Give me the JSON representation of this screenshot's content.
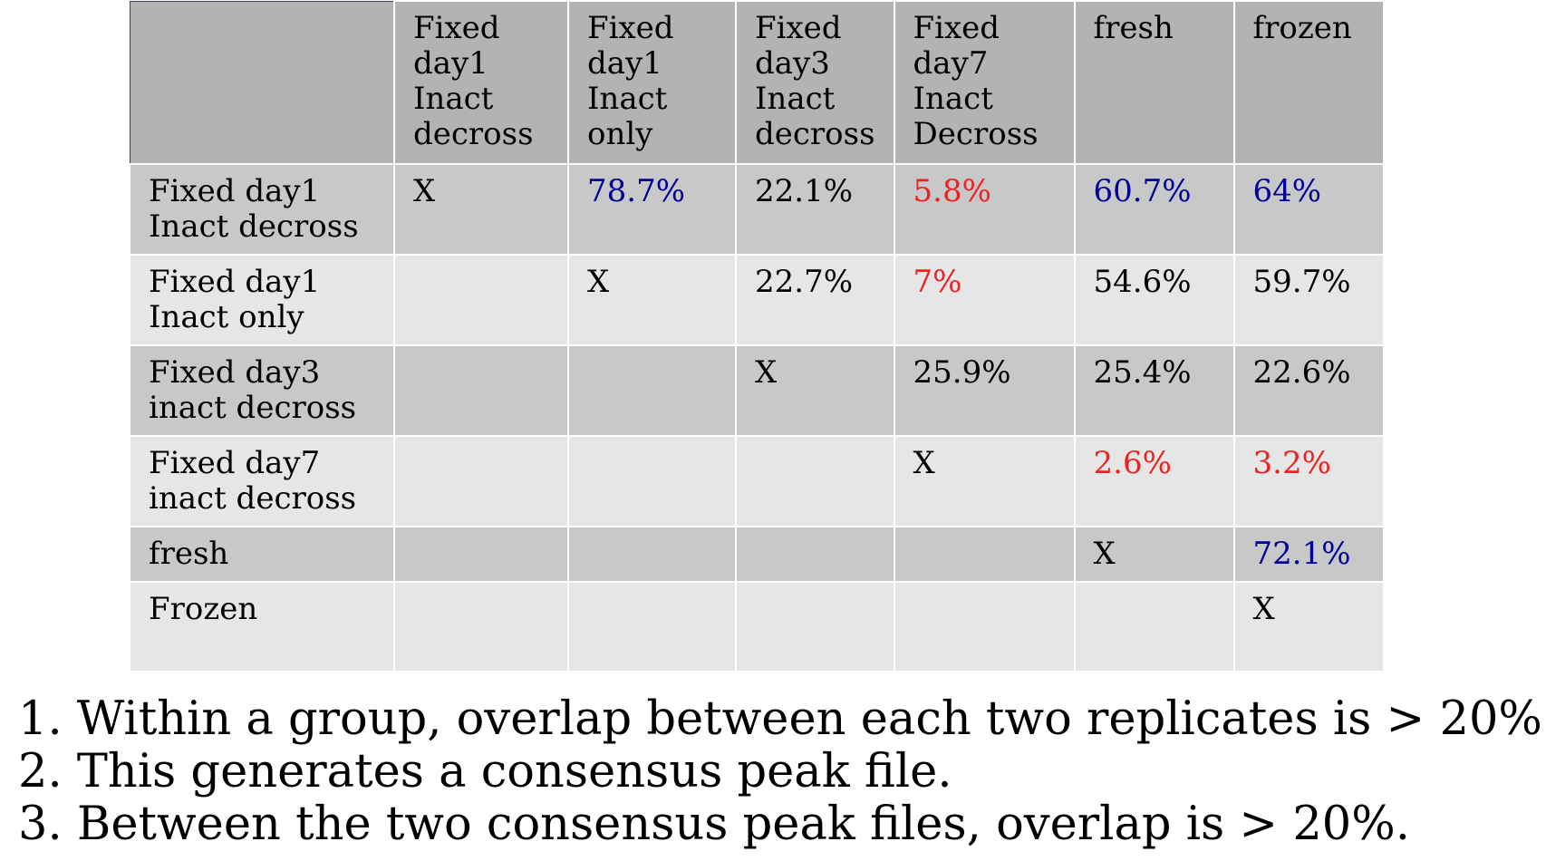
{
  "table": {
    "column_headers": [
      "",
      "Fixed\nday1\nInact\ndecross",
      "Fixed\nday1\nInact\nonly",
      "Fixed\nday3\nInact\ndecross",
      "Fixed\nday7\nInact\nDecross",
      "fresh",
      "frozen"
    ],
    "rows": [
      {
        "label": "Fixed day1\nInact decross",
        "cells": [
          {
            "text": "X",
            "style": "mark"
          },
          {
            "text": "78.7%",
            "style": "blue"
          },
          {
            "text": "22.1%",
            "style": "plain"
          },
          {
            "text": "5.8%",
            "style": "red-bold"
          },
          {
            "text": "60.7%",
            "style": "blue"
          },
          {
            "text": "64%",
            "style": "blue"
          }
        ]
      },
      {
        "label": "Fixed day1\nInact only",
        "cells": [
          {
            "text": "",
            "style": "plain"
          },
          {
            "text": "X",
            "style": "mark"
          },
          {
            "text": "22.7%",
            "style": "plain"
          },
          {
            "text": "7%",
            "style": "red"
          },
          {
            "text": "54.6%",
            "style": "plain"
          },
          {
            "text": "59.7%",
            "style": "plain"
          }
        ]
      },
      {
        "label": "Fixed day3\ninact decross",
        "cells": [
          {
            "text": "",
            "style": "plain"
          },
          {
            "text": "",
            "style": "plain"
          },
          {
            "text": "X",
            "style": "mark"
          },
          {
            "text": "25.9%",
            "style": "plain"
          },
          {
            "text": "25.4%",
            "style": "plain"
          },
          {
            "text": "22.6%",
            "style": "plain"
          }
        ]
      },
      {
        "label": "Fixed day7\ninact decross",
        "cells": [
          {
            "text": "",
            "style": "plain"
          },
          {
            "text": "",
            "style": "plain"
          },
          {
            "text": "",
            "style": "plain"
          },
          {
            "text": "X",
            "style": "mark"
          },
          {
            "text": "2.6%",
            "style": "red-bold"
          },
          {
            "text": "3.2%",
            "style": "red-bold"
          }
        ]
      },
      {
        "label": "fresh",
        "cells": [
          {
            "text": "",
            "style": "plain"
          },
          {
            "text": "",
            "style": "plain"
          },
          {
            "text": "",
            "style": "plain"
          },
          {
            "text": "",
            "style": "plain"
          },
          {
            "text": "X",
            "style": "mark"
          },
          {
            "text": "72.1%",
            "style": "blue"
          }
        ]
      },
      {
        "label": "Frozen",
        "cells": [
          {
            "text": "",
            "style": "plain"
          },
          {
            "text": "",
            "style": "plain"
          },
          {
            "text": "",
            "style": "plain"
          },
          {
            "text": "",
            "style": "plain"
          },
          {
            "text": "",
            "style": "plain"
          },
          {
            "text": "X",
            "style": "mark"
          }
        ]
      }
    ]
  },
  "notes": [
    "1. Within a group, overlap between each two replicates is > 20%.",
    "2. This generates a consensus peak file.",
    "3. Between the two consensus peak files, overlap is > 20%."
  ],
  "colors": {
    "header_bg": "#b3b3b3",
    "dark_row_bg": "#c8c8c8",
    "light_row_bg": "#e6e6e6",
    "highlight_blue": "#000099",
    "highlight_red": "#ee2222"
  }
}
